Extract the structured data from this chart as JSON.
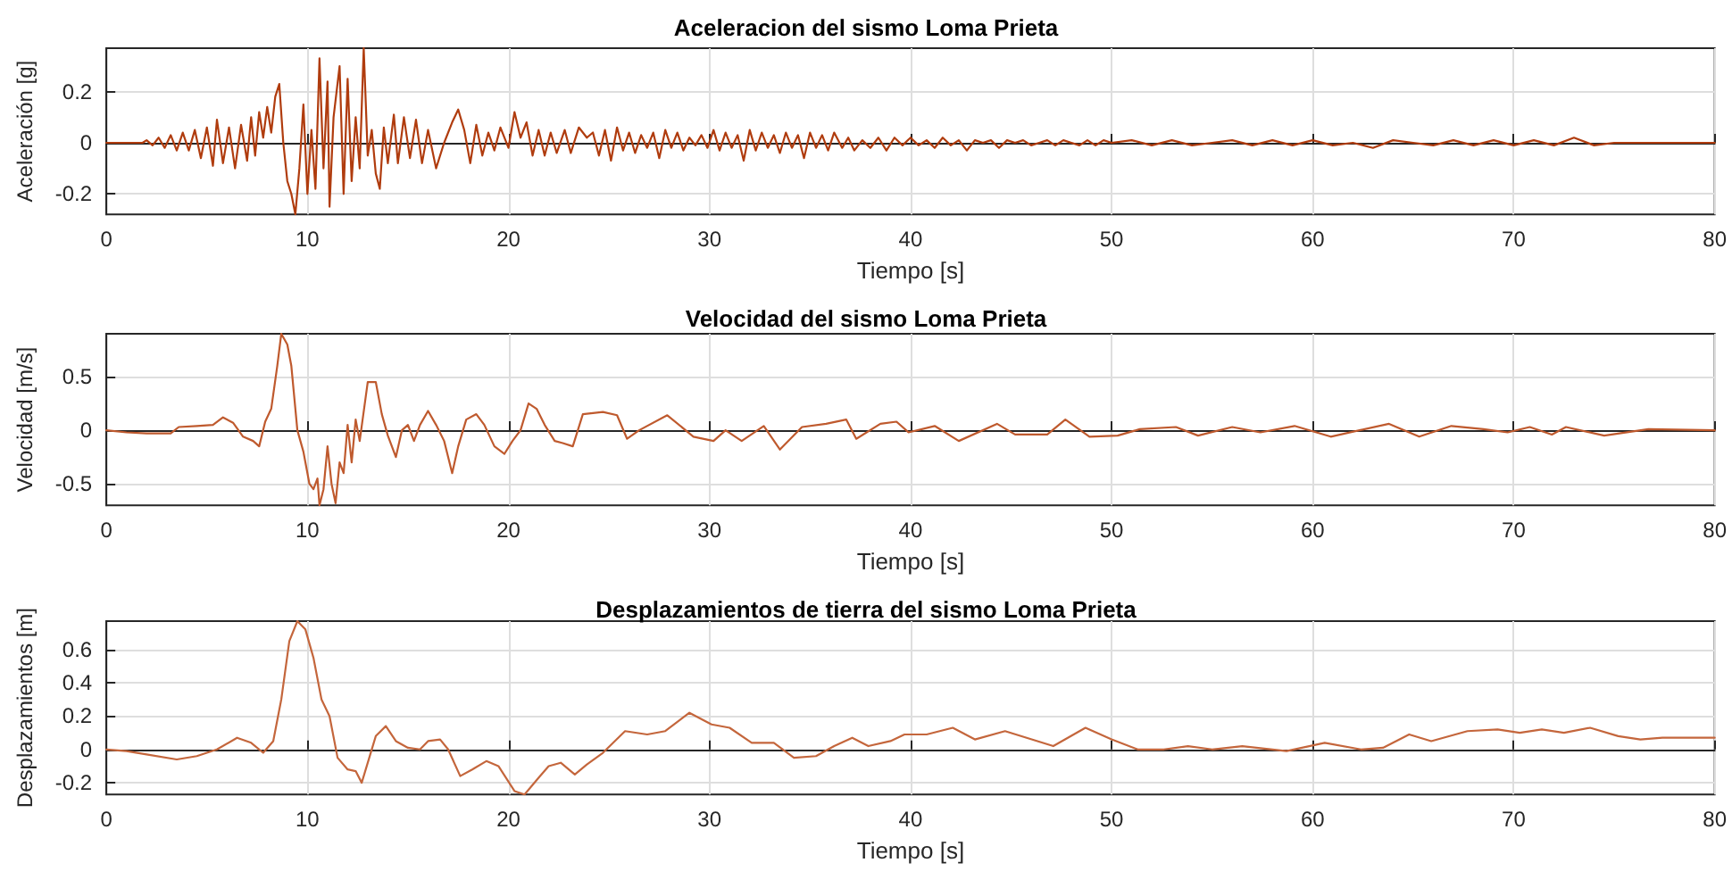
{
  "chart_data": [
    {
      "type": "line",
      "title": "Aceleracion del sismo Loma Prieta",
      "xlabel": "Tiempo [s]",
      "ylabel": "Aceleración [g]",
      "xlim": [
        0,
        80
      ],
      "xticks": [
        0,
        10,
        20,
        30,
        40,
        50,
        60,
        70,
        80
      ],
      "ylim": [
        -0.28,
        0.37
      ],
      "yticks": [
        -0.2,
        0,
        0.2
      ],
      "grid": true,
      "x": [
        0,
        1.8,
        2.0,
        2.3,
        2.6,
        2.9,
        3.2,
        3.5,
        3.8,
        4.1,
        4.4,
        4.7,
        5.0,
        5.3,
        5.5,
        5.8,
        6.1,
        6.4,
        6.7,
        7.0,
        7.2,
        7.4,
        7.6,
        7.8,
        8.0,
        8.2,
        8.4,
        8.6,
        8.8,
        9.0,
        9.2,
        9.4,
        9.6,
        9.8,
        10.0,
        10.2,
        10.4,
        10.6,
        10.8,
        11.0,
        11.1,
        11.3,
        11.6,
        11.8,
        12.0,
        12.2,
        12.4,
        12.6,
        12.8,
        13.0,
        13.2,
        13.4,
        13.6,
        13.8,
        14.0,
        14.3,
        14.5,
        14.8,
        15.1,
        15.4,
        15.7,
        16.0,
        16.4,
        16.8,
        17.2,
        17.5,
        17.8,
        18.1,
        18.4,
        18.7,
        19.0,
        19.3,
        19.6,
        20.0,
        20.3,
        20.6,
        20.9,
        21.2,
        21.5,
        21.8,
        22.1,
        22.4,
        22.8,
        23.1,
        23.5,
        23.9,
        24.2,
        24.5,
        24.8,
        25.1,
        25.4,
        25.7,
        26.0,
        26.3,
        26.6,
        26.9,
        27.2,
        27.5,
        27.8,
        28.1,
        28.4,
        28.7,
        29.0,
        29.3,
        29.6,
        29.9,
        30.2,
        30.5,
        30.8,
        31.1,
        31.4,
        31.7,
        32.0,
        32.3,
        32.6,
        32.9,
        33.2,
        33.5,
        33.8,
        34.1,
        34.4,
        34.7,
        35.0,
        35.3,
        35.6,
        35.9,
        36.2,
        36.6,
        36.9,
        37.2,
        37.6,
        38.0,
        38.4,
        38.8,
        39.2,
        39.6,
        40.0,
        40.4,
        40.8,
        41.2,
        41.6,
        42.0,
        42.4,
        42.8,
        43.2,
        43.6,
        44.0,
        44.4,
        44.8,
        45.2,
        45.6,
        46.0,
        46.4,
        46.8,
        47.2,
        47.6,
        48.0,
        48.4,
        48.8,
        49.2,
        49.6,
        50,
        51,
        52,
        53,
        54,
        55,
        56,
        57,
        58,
        59,
        60,
        61,
        62,
        63,
        64,
        65,
        66,
        67,
        68,
        69,
        70,
        71,
        72,
        73,
        74,
        75,
        76,
        77,
        80
      ],
      "series": [
        {
          "color": "#b03c0e",
          "values": [
            0,
            0,
            0.01,
            -0.01,
            0.02,
            -0.02,
            0.03,
            -0.03,
            0.04,
            -0.03,
            0.05,
            -0.06,
            0.06,
            -0.09,
            0.09,
            -0.08,
            0.06,
            -0.1,
            0.07,
            -0.07,
            0.1,
            -0.05,
            0.12,
            0.02,
            0.14,
            0.04,
            0.18,
            0.23,
            0,
            -0.15,
            -0.2,
            -0.28,
            -0.1,
            0.15,
            -0.2,
            0.05,
            -0.18,
            0.33,
            -0.1,
            0.24,
            -0.25,
            0.1,
            0.3,
            -0.2,
            0.25,
            -0.15,
            0.1,
            -0.1,
            0.37,
            -0.05,
            0.05,
            -0.12,
            -0.18,
            0.06,
            -0.08,
            0.11,
            -0.08,
            0.1,
            -0.06,
            0.09,
            -0.08,
            0.05,
            -0.1,
            0,
            0.08,
            0.13,
            0.05,
            -0.08,
            0.07,
            -0.05,
            0.04,
            -0.03,
            0.06,
            -0.02,
            0.12,
            0.02,
            0.08,
            -0.05,
            0.05,
            -0.05,
            0.04,
            -0.04,
            0.05,
            -0.04,
            0.06,
            0.02,
            0.04,
            -0.05,
            0.05,
            -0.07,
            0.06,
            -0.03,
            0.04,
            -0.04,
            0.03,
            -0.02,
            0.04,
            -0.06,
            0.05,
            -0.02,
            0.04,
            -0.03,
            0.02,
            -0.01,
            0.03,
            -0.02,
            0.05,
            -0.03,
            0.04,
            -0.02,
            0.03,
            -0.07,
            0.05,
            -0.03,
            0.04,
            -0.02,
            0.03,
            -0.04,
            0.04,
            -0.02,
            0.03,
            -0.06,
            0.04,
            -0.02,
            0.03,
            -0.03,
            0.04,
            -0.02,
            0.02,
            -0.03,
            0.01,
            -0.02,
            0.02,
            -0.03,
            0.02,
            -0.01,
            0.02,
            -0.01,
            0.01,
            -0.02,
            0.02,
            -0.01,
            0.01,
            -0.03,
            0.01,
            0,
            0.01,
            -0.02,
            0.01,
            0,
            0.01,
            -0.01,
            0,
            0.01,
            -0.01,
            0.01,
            0,
            -0.01,
            0.01,
            -0.01,
            0.01,
            0,
            0.01,
            -0.01,
            0.01,
            -0.01,
            0,
            0.01,
            -0.01,
            0.01,
            -0.01,
            0.01,
            -0.01,
            0,
            -0.02,
            0.01,
            0,
            -0.01,
            0.01,
            -0.01,
            0.01,
            -0.01,
            0.01,
            -0.01,
            0.02,
            -0.01,
            0,
            0,
            0,
            0
          ]
        }
      ]
    },
    {
      "type": "line",
      "title": "Velocidad del sismo Loma Prieta",
      "xlabel": "Tiempo [s]",
      "ylabel": "Velocidad [m/s]",
      "xlim": [
        0,
        80
      ],
      "xticks": [
        0,
        10,
        20,
        30,
        40,
        50,
        60,
        70,
        80
      ],
      "ylim": [
        -0.7,
        0.9
      ],
      "yticks": [
        -0.5,
        0,
        0.5
      ],
      "grid": true,
      "x": [
        0,
        1,
        2,
        3.2,
        3.6,
        4.5,
        5.3,
        5.8,
        6.3,
        6.8,
        7.3,
        7.6,
        7.9,
        8.2,
        8.5,
        8.7,
        9.0,
        9.2,
        9.5,
        9.8,
        10.1,
        10.3,
        10.5,
        10.6,
        10.8,
        11.0,
        11.2,
        11.4,
        11.6,
        11.8,
        12.0,
        12.2,
        12.4,
        12.6,
        13.0,
        13.4,
        13.7,
        14.0,
        14.4,
        14.7,
        15.0,
        15.3,
        15.6,
        16.0,
        16.4,
        16.8,
        17.2,
        17.5,
        17.9,
        18.4,
        18.8,
        19.3,
        19.8,
        20.2,
        20.6,
        21.0,
        21.4,
        21.8,
        22.3,
        22.7,
        23.2,
        23.7,
        24.7,
        25.4,
        25.9,
        26.5,
        27.9,
        29.2,
        30.2,
        30.8,
        31.6,
        32.7,
        33.5,
        34.6,
        35.8,
        36.8,
        37.3,
        38.5,
        39.3,
        39.9,
        41.2,
        42.4,
        44.3,
        45.2,
        46.8,
        47.7,
        48.9,
        50.3,
        51.4,
        53.2,
        54.3,
        56,
        57.4,
        59.1,
        60.9,
        63.8,
        65.3,
        66.9,
        68.5,
        69.7,
        70.8,
        71.9,
        72.6,
        74.5,
        76.7,
        80
      ],
      "series": [
        {
          "color": "#bf5a2e",
          "values": [
            0,
            -0.02,
            -0.03,
            -0.03,
            0.03,
            0.04,
            0.05,
            0.12,
            0.07,
            -0.06,
            -0.1,
            -0.15,
            0.08,
            0.2,
            0.6,
            0.9,
            0.8,
            0.6,
            0,
            -0.2,
            -0.5,
            -0.55,
            -0.45,
            -0.7,
            -0.55,
            -0.15,
            -0.5,
            -0.68,
            -0.3,
            -0.4,
            0.05,
            -0.3,
            0.1,
            -0.1,
            0.45,
            0.45,
            0.15,
            -0.05,
            -0.25,
            0,
            0.05,
            -0.1,
            0.05,
            0.18,
            0.05,
            -0.1,
            -0.4,
            -0.15,
            0.1,
            0.15,
            0.05,
            -0.15,
            -0.22,
            -0.1,
            0,
            0.25,
            0.2,
            0.05,
            -0.1,
            -0.12,
            -0.15,
            0.15,
            0.17,
            0.14,
            -0.08,
            0,
            0.14,
            -0.06,
            -0.1,
            0,
            -0.1,
            0.04,
            -0.18,
            0.03,
            0.06,
            0.1,
            -0.08,
            0.06,
            0.08,
            -0.02,
            0.04,
            -0.1,
            0.06,
            -0.04,
            -0.04,
            0.1,
            -0.06,
            -0.05,
            0.01,
            0.03,
            -0.05,
            0.03,
            -0.02,
            0.04,
            -0.06,
            0.06,
            -0.06,
            0.04,
            0.01,
            -0.02,
            0.03,
            -0.04,
            0.03,
            -0.05,
            0.01,
            0
          ]
        }
      ]
    },
    {
      "type": "line",
      "title": "Desplazamientos de tierra del sismo Loma Prieta",
      "xlabel": "Tiempo [s]",
      "ylabel": "Desplazamientos [m]",
      "xlim": [
        0,
        80
      ],
      "xticks": [
        0,
        10,
        20,
        30,
        40,
        50,
        60,
        70,
        80
      ],
      "ylim": [
        -0.27,
        0.77
      ],
      "yticks": [
        -0.2,
        0,
        0.2,
        0.4,
        0.6
      ],
      "grid": true,
      "x": [
        0,
        1,
        2,
        3.5,
        4.5,
        5.5,
        6.5,
        7.2,
        7.8,
        8.3,
        8.7,
        9.1,
        9.5,
        9.9,
        10.3,
        10.7,
        11.1,
        11.5,
        12.0,
        12.4,
        12.7,
        13.4,
        13.9,
        14.4,
        15.0,
        15.6,
        16.0,
        16.6,
        17.0,
        17.6,
        18.2,
        18.9,
        19.5,
        20.3,
        20.8,
        21.5,
        22.0,
        22.6,
        23.3,
        23.9,
        24.7,
        25.8,
        26.9,
        27.8,
        29,
        30.1,
        31,
        32.1,
        33.2,
        34.2,
        35.3,
        36.2,
        37.1,
        37.9,
        39,
        39.7,
        40.8,
        42.1,
        43.2,
        44.7,
        47.1,
        48.7,
        50,
        51.3,
        52.6,
        53.8,
        55,
        56.5,
        58.7,
        60.6,
        62.4,
        63.5,
        64.8,
        65.9,
        67.7,
        69.2,
        70.3,
        71.4,
        72.5,
        73.8,
        75.2,
        76.3,
        77.4,
        80
      ],
      "series": [
        {
          "color": "#c4663c",
          "values": [
            0,
            -0.01,
            -0.03,
            -0.06,
            -0.04,
            0,
            0.07,
            0.04,
            -0.02,
            0.05,
            0.3,
            0.65,
            0.77,
            0.72,
            0.55,
            0.3,
            0.2,
            -0.05,
            -0.12,
            -0.13,
            -0.2,
            0.08,
            0.14,
            0.05,
            0.01,
            0,
            0.05,
            0.06,
            0,
            -0.16,
            -0.12,
            -0.07,
            -0.1,
            -0.25,
            -0.27,
            -0.17,
            -0.1,
            -0.08,
            -0.15,
            -0.09,
            -0.02,
            0.11,
            0.09,
            0.11,
            0.22,
            0.15,
            0.13,
            0.04,
            0.04,
            -0.05,
            -0.04,
            0.02,
            0.07,
            0.02,
            0.05,
            0.09,
            0.09,
            0.13,
            0.06,
            0.11,
            0.02,
            0.13,
            0.06,
            0,
            0,
            0.02,
            0,
            0.02,
            -0.01,
            0.04,
            0,
            0.01,
            0.09,
            0.05,
            0.11,
            0.12,
            0.1,
            0.12,
            0.1,
            0.13,
            0.08,
            0.06,
            0.07,
            0.07
          ]
        }
      ]
    }
  ]
}
